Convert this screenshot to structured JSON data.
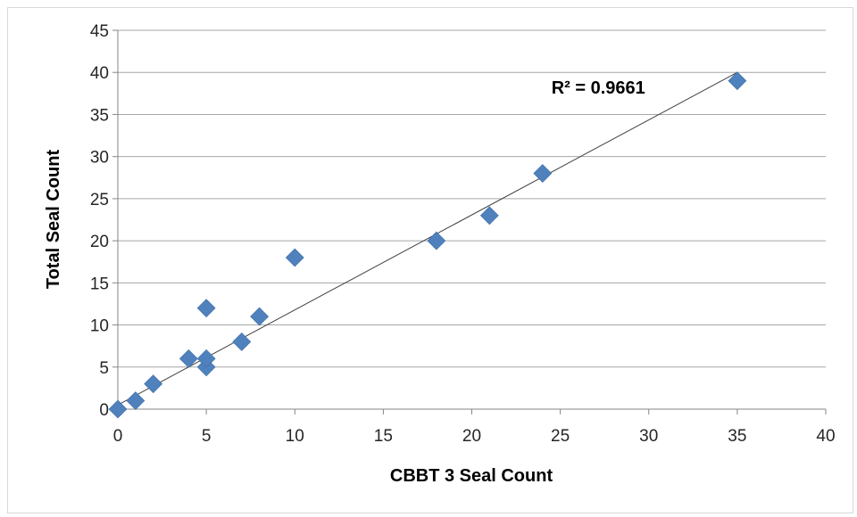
{
  "chart_data": {
    "type": "scatter",
    "title": "",
    "xlabel": "CBBT 3 Seal Count",
    "ylabel": "Total Seal Count",
    "xlim": [
      0,
      40
    ],
    "ylim": [
      0,
      45
    ],
    "xticks": [
      "0",
      "5",
      "10",
      "15",
      "20",
      "25",
      "30",
      "35",
      "40"
    ],
    "yticks": [
      "0",
      "5",
      "10",
      "15",
      "20",
      "25",
      "30",
      "35",
      "40",
      "45"
    ],
    "grid": {
      "horizontal": true,
      "vertical": false
    },
    "legend": "none",
    "marker": "diamond",
    "marker_color": "#4F81BD",
    "line_color": "#404040",
    "series": [
      {
        "points": [
          [
            0,
            0
          ],
          [
            1,
            1
          ],
          [
            2,
            3
          ],
          [
            4,
            6
          ],
          [
            5,
            5
          ],
          [
            5,
            6
          ],
          [
            5,
            12
          ],
          [
            7,
            8
          ],
          [
            8,
            11
          ],
          [
            10,
            18
          ],
          [
            18,
            20
          ],
          [
            21,
            23
          ],
          [
            24,
            28
          ],
          [
            35,
            39
          ]
        ]
      }
    ],
    "trendline": {
      "type": "linear",
      "from": [
        0,
        0.5
      ],
      "to": [
        35,
        40
      ]
    },
    "annotations": [
      {
        "text": "R² = 0.9661",
        "x": 24.5,
        "y": 37.5
      }
    ]
  }
}
